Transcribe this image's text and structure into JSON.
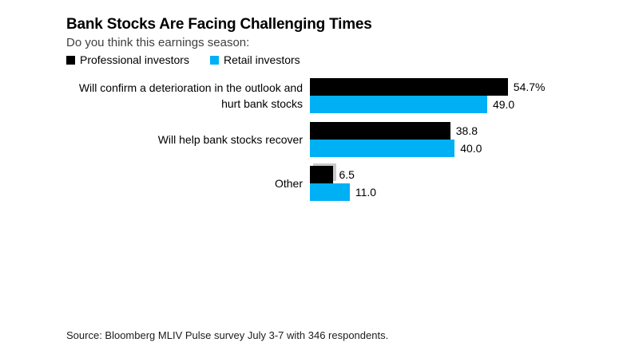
{
  "header": {
    "title": "Bank Stocks Are Facing Challenging Times",
    "subtitle": "Do you think this earnings season:"
  },
  "source_note": "Source: Bloomberg MLIV Pulse survey July 3-7 with 346 respondents.",
  "colors": {
    "professional": "#000000",
    "retail": "#00b0f5",
    "highlight_outline": "#c9c9c9",
    "background": "#ffffff"
  },
  "chart_data": {
    "type": "bar",
    "orientation": "horizontal",
    "title": "Bank Stocks Are Facing Challenging Times",
    "subtitle": "Do you think this earnings season:",
    "categories": [
      "Will confirm a deterioration in the outlook and hurt bank stocks",
      "Will help bank stocks recover",
      "Other"
    ],
    "series": [
      {
        "name": "Professional investors",
        "color": "#000000",
        "values": [
          54.7,
          38.8,
          6.5
        ],
        "value_labels": [
          "54.7%",
          "38.8",
          "6.5"
        ]
      },
      {
        "name": "Retail investors",
        "color": "#00b0f5",
        "values": [
          49.0,
          40.0,
          11.0
        ],
        "value_labels": [
          "49.0",
          "40.0",
          "11.0"
        ]
      }
    ],
    "xlim": [
      0,
      60
    ],
    "grid": false,
    "legend_position": "top-left",
    "value_labels_shown": true,
    "highlighted_bar": {
      "series_index": 0,
      "category_index": 2
    },
    "source": "Source: Bloomberg MLIV Pulse survey July 3-7 with 346 respondents."
  }
}
